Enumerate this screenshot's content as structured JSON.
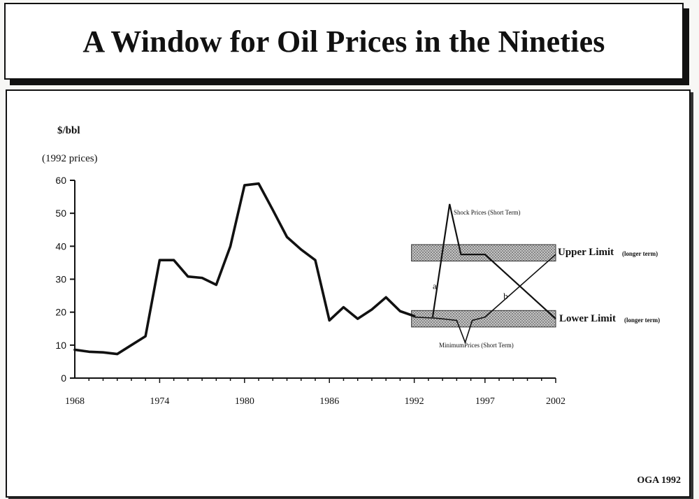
{
  "title": "A Window for Oil Prices in the Nineties",
  "credit": "OGA 1992",
  "colors": {
    "line": "#111111",
    "band": "#9a9a9a"
  },
  "chart_data": {
    "type": "line",
    "unit_label": "$/bbl",
    "unit_note": "(1992 prices)",
    "ylim": [
      0,
      60
    ],
    "xlim": [
      1968,
      2002
    ],
    "yticks": [
      0,
      10,
      20,
      30,
      40,
      50,
      60
    ],
    "xtick_labels": [
      {
        "x": 1968,
        "label": "1968"
      },
      {
        "x": 1974,
        "label": "1974"
      },
      {
        "x": 1980,
        "label": "1980"
      },
      {
        "x": 1986,
        "label": "1986"
      },
      {
        "x": 1992,
        "label": "1992"
      },
      {
        "x": 1997,
        "label": "1997"
      },
      {
        "x": 2002,
        "label": "2002"
      }
    ],
    "historical": {
      "x": [
        1968,
        1969,
        1970,
        1971,
        1972,
        1973,
        1974,
        1975,
        1976,
        1977,
        1978,
        1979,
        1980,
        1981,
        1982,
        1983,
        1984,
        1985,
        1986,
        1987,
        1988,
        1989,
        1990,
        1991,
        1992
      ],
      "y": [
        8.6,
        8.0,
        7.8,
        7.3,
        10.0,
        12.7,
        35.8,
        35.8,
        30.8,
        30.4,
        28.3,
        40.0,
        58.5,
        59.0,
        51.0,
        42.8,
        39.0,
        35.8,
        17.5,
        21.5,
        18.0,
        20.8,
        24.5,
        20.3,
        18.8
      ]
    },
    "bands": [
      {
        "name": "Upper Limit",
        "qualifier": "(longer term)",
        "y_low": 35.5,
        "y_high": 40.5,
        "x_start": 1992,
        "x_end": 2002
      },
      {
        "name": "Lower Limit",
        "qualifier": "(longer term)",
        "y_low": 15.5,
        "y_high": 20.5,
        "x_start": 1992,
        "x_end": 2002
      }
    ],
    "scenarios": [
      {
        "name": "Shock Prices (Short Term)",
        "x": [
          1993.3,
          1994.5,
          1995.3,
          1997.0,
          2002.0
        ],
        "y": [
          18.5,
          52.8,
          37.5,
          37.5,
          18.0
        ]
      },
      {
        "name": "MinimumPrices (Short Term)",
        "x": [
          1992.0,
          1993.5,
          1995.0,
          1995.6,
          1996.1,
          1997.0,
          2002.0
        ],
        "y": [
          18.5,
          18.2,
          17.5,
          10.8,
          17.5,
          18.5,
          37.5
        ]
      }
    ],
    "path_labels": [
      {
        "text": "a",
        "x": 1993.3,
        "y": 27.0
      },
      {
        "text": "b",
        "x": 1998.3,
        "y": 24.0
      }
    ]
  }
}
